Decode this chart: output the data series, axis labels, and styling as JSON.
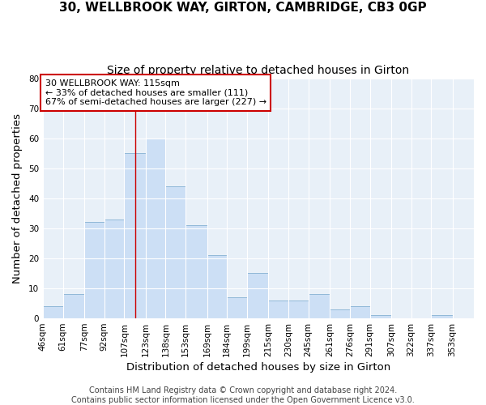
{
  "title": "30, WELLBROOK WAY, GIRTON, CAMBRIDGE, CB3 0GP",
  "subtitle": "Size of property relative to detached houses in Girton",
  "xlabel": "Distribution of detached houses by size in Girton",
  "ylabel": "Number of detached properties",
  "bin_labels": [
    "46sqm",
    "61sqm",
    "77sqm",
    "92sqm",
    "107sqm",
    "123sqm",
    "138sqm",
    "153sqm",
    "169sqm",
    "184sqm",
    "199sqm",
    "215sqm",
    "230sqm",
    "245sqm",
    "261sqm",
    "276sqm",
    "291sqm",
    "307sqm",
    "322sqm",
    "337sqm",
    "353sqm"
  ],
  "bar_values": [
    4,
    8,
    32,
    33,
    55,
    60,
    44,
    31,
    21,
    7,
    15,
    6,
    6,
    8,
    3,
    4,
    1,
    0,
    0,
    1
  ],
  "bar_color": "#ccdff5",
  "bar_edge_color": "#90b8d8",
  "ylim": [
    0,
    80
  ],
  "yticks": [
    0,
    10,
    20,
    30,
    40,
    50,
    60,
    70,
    80
  ],
  "reference_line_x": 115,
  "bin_edges": [
    46,
    61,
    77,
    92,
    107,
    123,
    138,
    153,
    169,
    184,
    199,
    215,
    230,
    245,
    261,
    276,
    291,
    307,
    322,
    337,
    353
  ],
  "annotation_text_line1": "30 WELLBROOK WAY: 115sqm",
  "annotation_text_line2": "← 33% of detached houses are smaller (111)",
  "annotation_text_line3": "67% of semi-detached houses are larger (227) →",
  "annotation_box_facecolor": "#ffffff",
  "annotation_box_edgecolor": "#cc0000",
  "ref_line_color": "#cc0000",
  "footer1": "Contains HM Land Registry data © Crown copyright and database right 2024.",
  "footer2": "Contains public sector information licensed under the Open Government Licence v3.0.",
  "fig_facecolor": "#ffffff",
  "plot_facecolor": "#e8f0f8",
  "grid_color": "#ffffff",
  "title_fontsize": 11,
  "subtitle_fontsize": 10,
  "axis_label_fontsize": 9.5,
  "tick_fontsize": 7.5,
  "annotation_fontsize": 8,
  "footer_fontsize": 7
}
